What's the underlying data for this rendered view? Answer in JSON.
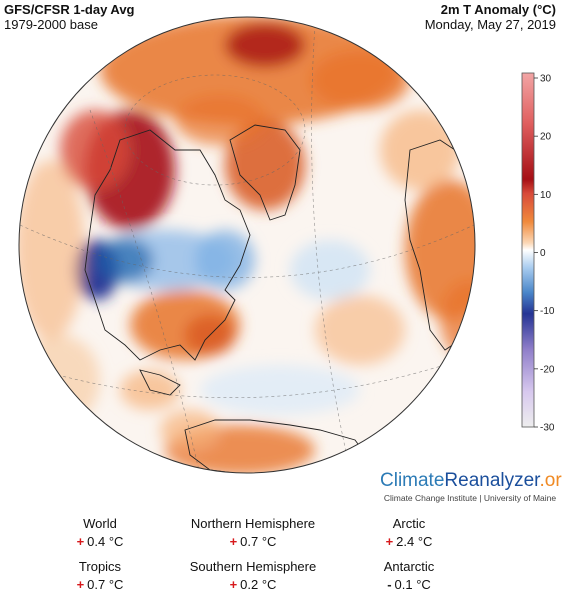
{
  "header": {
    "left_title": "GFS/CFSR 1-day Avg",
    "left_subtitle": "1979-2000 base",
    "right_title": "2m T Anomaly (°C)",
    "right_subtitle": "Monday, May 27, 2019"
  },
  "colorbar": {
    "ticks": [
      "30",
      "20",
      "10",
      "0",
      "-10",
      "-20",
      "-30"
    ],
    "colors": [
      "#f2a5a5",
      "#d84a3a",
      "#a50f15",
      "#e8742b",
      "#f7b27a",
      "#ffffff",
      "#7fb2e5",
      "#2166ac",
      "#253494",
      "#8f7ec9",
      "#c8b8e8",
      "#eeeeee"
    ]
  },
  "brand": {
    "name_part1": "Climate",
    "name_part2": "Reanalyzer",
    "name_part3": ".org",
    "subtitle": "Climate Change Institute | University of Maine"
  },
  "stats": [
    {
      "label": "World",
      "sign": "+",
      "value": "0.4 °C"
    },
    {
      "label": "Northern Hemisphere",
      "sign": "+",
      "value": "0.7 °C"
    },
    {
      "label": "Arctic",
      "sign": "+",
      "value": "2.4 °C"
    },
    {
      "label": "Tropics",
      "sign": "+",
      "value": "0.7 °C"
    },
    {
      "label": "Southern Hemisphere",
      "sign": "+",
      "value": "0.2 °C"
    },
    {
      "label": "Antarctic",
      "sign": "-",
      "value": "0.1 °C"
    }
  ]
}
